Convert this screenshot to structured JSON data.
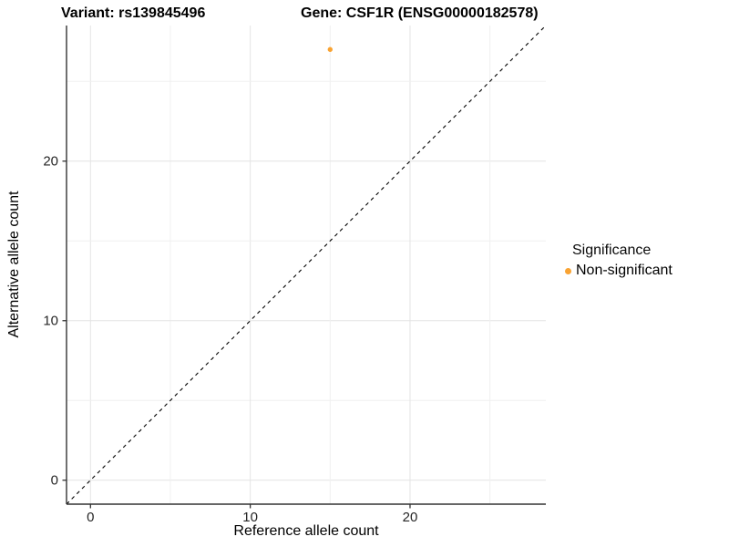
{
  "title": {
    "variant": "Variant: rs139845496",
    "gene": "Gene: CSF1R (ENSG00000182578)"
  },
  "chart_data": {
    "type": "scatter",
    "title": "Variant: rs139845496   Gene: CSF1R (ENSG00000182578)",
    "xlabel": "Reference allele count",
    "ylabel": "Alternative allele count",
    "xlim": [
      -1.5,
      28.5
    ],
    "ylim": [
      -1.5,
      28.5
    ],
    "x_ticks": [
      0,
      10,
      20
    ],
    "y_ticks": [
      0,
      10,
      20
    ],
    "grid_ticks": [
      0,
      5,
      10,
      15,
      20,
      25
    ],
    "grid": "on",
    "points": [
      {
        "x": 15,
        "y": 27,
        "series": "Non-significant"
      }
    ],
    "identity_line": {
      "equation": "y = x",
      "style": "dashed",
      "color": "#000000"
    },
    "legend": {
      "title": "Significance",
      "position": "right",
      "entries": [
        {
          "label": "Non-significant",
          "color": "#F9A332"
        }
      ]
    },
    "colors": {
      "point": "#F9A332",
      "axis_line": "#333333",
      "tick_mark": "#333333",
      "grid_major": "#E4E4E4",
      "grid_minor": "#F0F0F0",
      "background": "#FFFFFF"
    }
  }
}
